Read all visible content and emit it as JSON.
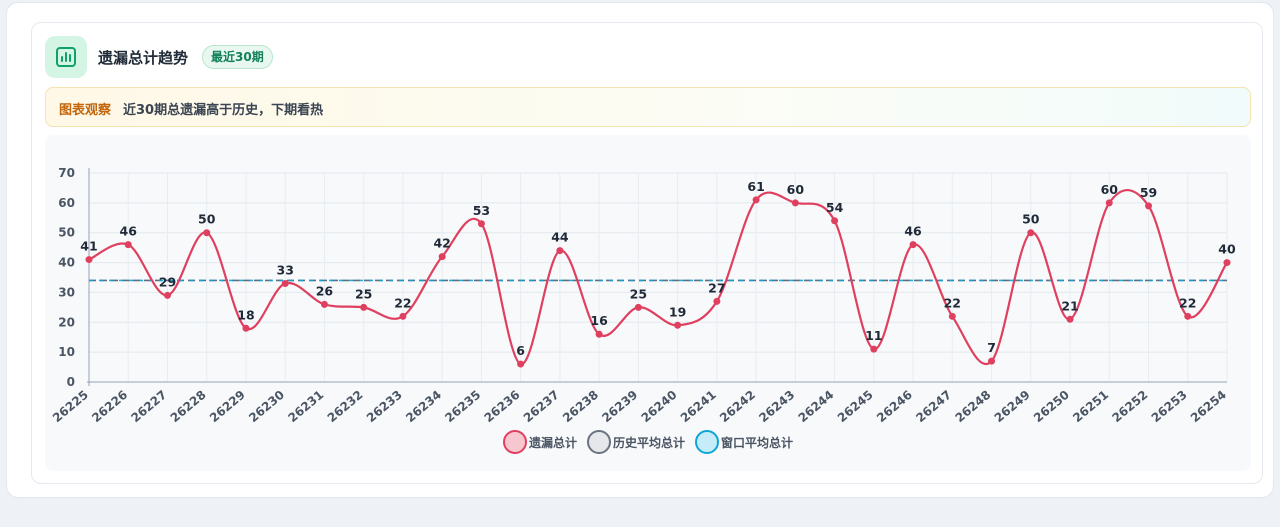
{
  "header": {
    "title": "遗漏总计趋势",
    "badge": "最近30期",
    "icon": "bar-chart-icon"
  },
  "observation": {
    "tag": "图表观察",
    "text": "近30期总遗漏高于历史，下期看热"
  },
  "colors": {
    "series": "#e0405f",
    "history_avg": "#475569",
    "window_avg": "#0ea5d6",
    "icon_bg": "#d4f5e4",
    "icon_fg": "#12a06a"
  },
  "chart_data": {
    "type": "line",
    "title": "",
    "xlabel": "",
    "ylabel": "",
    "ylim": [
      0,
      70
    ],
    "yticks": [
      0,
      10,
      20,
      30,
      40,
      50,
      60,
      70
    ],
    "grid": true,
    "legend_position": "bottom",
    "categories": [
      "26225",
      "26226",
      "26227",
      "26228",
      "26229",
      "26230",
      "26231",
      "26232",
      "26233",
      "26234",
      "26235",
      "26236",
      "26237",
      "26238",
      "26239",
      "26240",
      "26241",
      "26242",
      "26243",
      "26244",
      "26245",
      "26246",
      "26247",
      "26248",
      "26249",
      "26250",
      "26251",
      "26252",
      "26253",
      "26254"
    ],
    "series": [
      {
        "name": "遗漏总计",
        "values": [
          41,
          46,
          29,
          50,
          18,
          33,
          26,
          25,
          22,
          42,
          53,
          6,
          44,
          16,
          25,
          19,
          27,
          61,
          60,
          54,
          11,
          46,
          22,
          7,
          50,
          21,
          60,
          59,
          22,
          40
        ],
        "color": "#e0405f",
        "smooth": true,
        "data_labels": true
      }
    ],
    "reference_lines": [
      {
        "name": "历史平均总计",
        "value": 34,
        "color": "#475569"
      },
      {
        "name": "窗口平均总计",
        "value": 34,
        "color": "#0ea5d6"
      }
    ],
    "legend": [
      "遗漏总计",
      "历史平均总计",
      "窗口平均总计"
    ]
  }
}
